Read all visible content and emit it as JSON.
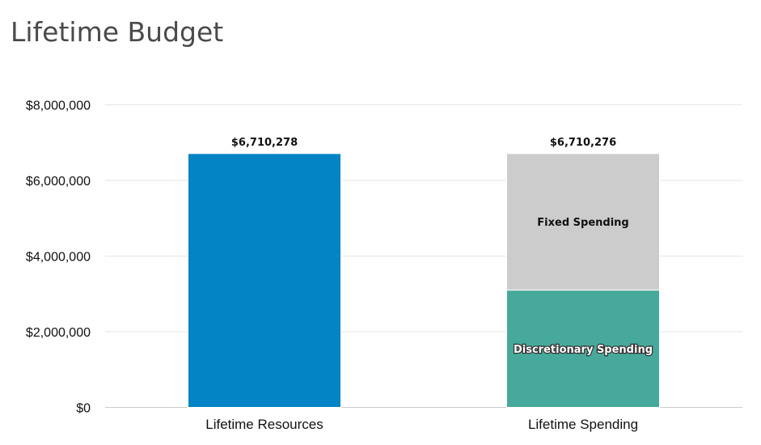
{
  "title": "Lifetime Budget",
  "chart_data": {
    "type": "bar",
    "stacked": true,
    "title": "Lifetime Budget",
    "categories": [
      "Lifetime Resources",
      "Lifetime Spending"
    ],
    "series": [
      {
        "name": "Lifetime Resources",
        "values": [
          6710278,
          0
        ],
        "color": "#0284c5"
      },
      {
        "name": "Discretionary Spending",
        "values": [
          0,
          3100000
        ],
        "color": "#47a99b"
      },
      {
        "name": "Fixed Spending",
        "values": [
          0,
          3610276
        ],
        "color": "#cccccc"
      }
    ],
    "totals": [
      "$6,710,278",
      "$6,710,276"
    ],
    "segment_labels": [
      "",
      "Discretionary Spending",
      "Fixed Spending"
    ],
    "ylim": [
      0,
      8000000
    ],
    "yticks": [
      0,
      2000000,
      4000000,
      6000000,
      8000000
    ],
    "ytick_labels": [
      "$0",
      "$2,000,000",
      "$4,000,000",
      "$6,000,000",
      "$8,000,000"
    ],
    "grid": true,
    "legend": "none"
  }
}
